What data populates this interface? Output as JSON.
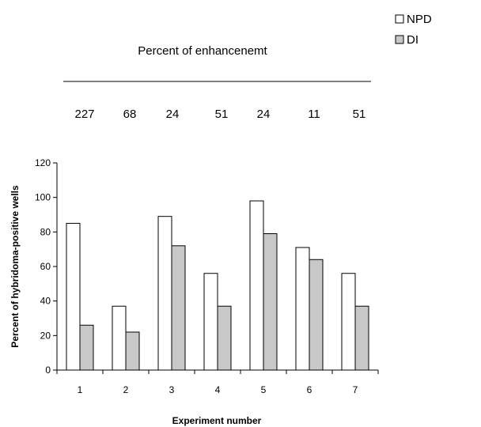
{
  "enhancement": {
    "title": "Percent of enhancenemt",
    "values": [
      "227",
      "68",
      "24",
      "51",
      "24",
      "11",
      "51"
    ]
  },
  "chart_data": {
    "type": "bar",
    "xlabel": "Experiment number",
    "ylabel": "Percent of hybridoma-positive wells",
    "categories": [
      "1",
      "2",
      "3",
      "4",
      "5",
      "6",
      "7"
    ],
    "ylim": [
      0,
      120
    ],
    "yticks": [
      "0",
      "20",
      "40",
      "60",
      "80",
      "100",
      "120"
    ],
    "legend_position": "top-right",
    "series": [
      {
        "name": "NPD",
        "color": "#ffffff",
        "values": [
          85,
          37,
          89,
          56,
          98,
          71,
          56
        ]
      },
      {
        "name": "DI",
        "color": "#c8c8c8",
        "values": [
          26,
          22,
          72,
          37,
          79,
          64,
          37
        ]
      }
    ]
  }
}
